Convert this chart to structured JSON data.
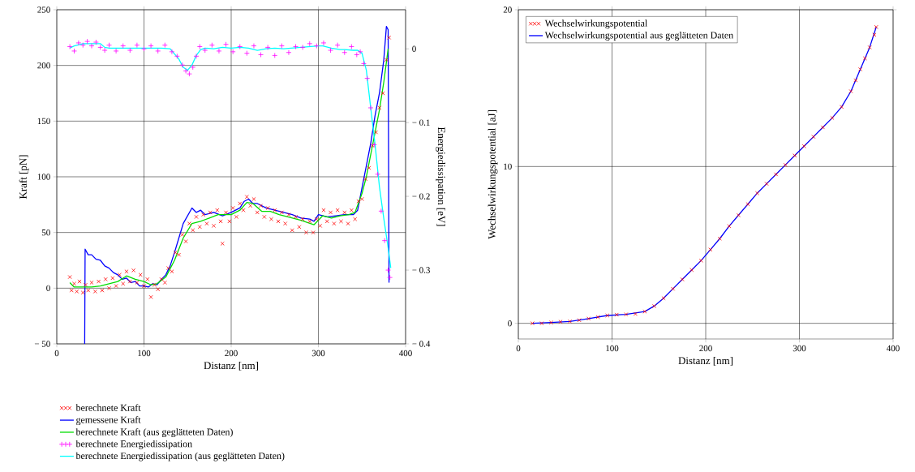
{
  "chart_data": [
    {
      "type": "line",
      "xlabel": "Distanz [nm]",
      "ylabel": "Kraft [pN]",
      "y2label": "Energiedissipation [eV]",
      "xlim": [
        0,
        400
      ],
      "ylim": [
        -50,
        250
      ],
      "y2lim": [
        -0.4,
        0.053
      ],
      "xticks": [
        0,
        100,
        200,
        300,
        400
      ],
      "yticks": [
        {
          "value": -50,
          "label": "− 50"
        },
        0,
        50,
        100,
        150,
        200,
        250
      ],
      "y2ticks": [
        0,
        {
          "value": -0.1,
          "label": "− 0.1"
        },
        {
          "value": -0.2,
          "label": "− 0.2"
        },
        {
          "value": -0.3,
          "label": "− 0.3"
        },
        {
          "value": -0.4,
          "label": "− 0.4"
        }
      ],
      "grid": true,
      "legend": "bottom",
      "series": [
        {
          "name": "berechnete Kraft",
          "type": "scatter",
          "marker": "cross",
          "color": "#ff0000",
          "x": [
            15,
            17,
            20,
            23,
            26,
            30,
            33,
            36,
            40,
            44,
            48,
            52,
            56,
            60,
            64,
            68,
            72,
            76,
            80,
            84,
            88,
            92,
            96,
            100,
            104,
            108,
            112,
            116,
            120,
            124,
            128,
            132,
            136,
            140,
            144,
            148,
            152,
            156,
            160,
            164,
            168,
            172,
            176,
            180,
            184,
            188,
            190,
            194,
            198,
            202,
            206,
            210,
            214,
            218,
            222,
            226,
            230,
            234,
            238,
            242,
            246,
            250,
            254,
            258,
            262,
            266,
            270,
            274,
            278,
            282,
            286,
            290,
            294,
            298,
            302,
            306,
            310,
            314,
            318,
            322,
            326,
            330,
            334,
            338,
            342,
            346,
            350,
            354,
            358,
            362,
            366,
            370,
            374,
            378,
            381
          ],
          "values": [
            10,
            -2,
            4,
            -3,
            6,
            -4,
            3,
            -2,
            5,
            -3,
            6,
            -2,
            8,
            0,
            9,
            2,
            12,
            4,
            15,
            6,
            16,
            5,
            12,
            2,
            8,
            -8,
            3,
            -1,
            8,
            5,
            18,
            15,
            32,
            30,
            48,
            42,
            58,
            52,
            64,
            55,
            66,
            58,
            68,
            56,
            70,
            60,
            40,
            68,
            60,
            72,
            64,
            76,
            70,
            82,
            74,
            80,
            68,
            74,
            64,
            72,
            62,
            70,
            60,
            68,
            58,
            66,
            52,
            64,
            55,
            62,
            50,
            60,
            50,
            62,
            56,
            70,
            60,
            68,
            58,
            70,
            60,
            68,
            58,
            70,
            62,
            78,
            80,
            98,
            108,
            128,
            140,
            162,
            175,
            205,
            225
          ]
        },
        {
          "name": "gemessene Kraft",
          "type": "line",
          "marker": "none",
          "color": "#0000ff",
          "x": [
            32,
            32.5,
            36,
            40,
            45,
            50,
            55,
            60,
            65,
            70,
            75,
            80,
            85,
            90,
            95,
            100,
            105,
            110,
            115,
            120,
            125,
            130,
            135,
            140,
            145,
            150,
            155,
            160,
            165,
            170,
            180,
            190,
            200,
            210,
            215,
            220,
            225,
            230,
            240,
            250,
            260,
            270,
            280,
            290,
            295,
            300,
            310,
            320,
            330,
            340,
            345,
            350,
            355,
            360,
            365,
            370,
            375,
            378,
            380,
            381
          ],
          "values": [
            -50,
            35,
            30,
            30,
            26,
            25,
            20,
            18,
            14,
            12,
            8,
            9,
            5,
            6,
            2,
            2,
            1,
            4,
            3,
            8,
            12,
            20,
            32,
            45,
            58,
            65,
            72,
            68,
            70,
            66,
            68,
            65,
            68,
            72,
            78,
            80,
            76,
            76,
            72,
            70,
            68,
            66,
            63,
            62,
            60,
            66,
            64,
            65,
            66,
            66,
            70,
            90,
            110,
            130,
            155,
            175,
            205,
            235,
            232,
            5
          ]
        },
        {
          "name": "berechnete Kraft (aus geglätteten Daten)",
          "type": "line",
          "marker": "none",
          "color": "#00dd00",
          "x": [
            15,
            20,
            30,
            40,
            50,
            60,
            70,
            80,
            90,
            100,
            108,
            115,
            125,
            135,
            145,
            155,
            165,
            175,
            185,
            200,
            210,
            218,
            225,
            235,
            245,
            255,
            265,
            280,
            295,
            305,
            315,
            325,
            335,
            342,
            350,
            355,
            360,
            365,
            370,
            375,
            380
          ],
          "values": [
            5,
            1,
            1,
            1,
            2,
            4,
            6,
            11,
            8,
            6,
            3,
            4,
            10,
            25,
            45,
            58,
            60,
            63,
            66,
            66,
            70,
            77,
            76,
            69,
            69,
            66,
            64,
            61,
            57,
            65,
            63,
            65,
            66,
            68,
            85,
            100,
            120,
            140,
            160,
            185,
            215
          ]
        },
        {
          "name": "berechnete Energiedissipation",
          "type": "scatter",
          "marker": "plus",
          "color": "#ff00ff",
          "axis": "y2",
          "x": [
            15,
            20,
            25,
            30,
            35,
            40,
            45,
            50,
            55,
            60,
            68,
            76,
            84,
            92,
            100,
            108,
            116,
            124,
            132,
            138,
            144,
            148,
            152,
            156,
            160,
            164,
            170,
            178,
            186,
            194,
            202,
            210,
            218,
            226,
            234,
            242,
            250,
            258,
            266,
            274,
            282,
            290,
            298,
            306,
            314,
            322,
            330,
            338,
            344,
            348,
            352,
            356,
            360,
            364,
            368,
            372,
            376,
            380,
            382
          ],
          "values": [
            0.003,
            -0.003,
            0.008,
            0.005,
            0.01,
            0.004,
            0.009,
            0.002,
            -0.002,
            0.005,
            -0.003,
            0.004,
            -0.002,
            0.005,
            0,
            0.004,
            -0.003,
            0.005,
            -0.004,
            -0.01,
            -0.022,
            -0.03,
            -0.034,
            -0.025,
            -0.01,
            0.003,
            -0.002,
            0.005,
            -0.003,
            0.006,
            -0.004,
            0.003,
            -0.006,
            0.004,
            -0.008,
            0.002,
            -0.009,
            0.004,
            -0.005,
            0.003,
            0.002,
            0.007,
            0.004,
            0.008,
            -0.002,
            0.005,
            -0.005,
            0.003,
            -0.008,
            -0.004,
            -0.02,
            -0.04,
            -0.08,
            -0.13,
            -0.17,
            -0.22,
            -0.26,
            -0.3,
            -0.31
          ]
        },
        {
          "name": "berechnete Energiedissipation (aus geglätteten Daten)",
          "type": "line",
          "marker": "none",
          "color": "#00ffff",
          "axis": "y2",
          "x": [
            15,
            20,
            30,
            40,
            50,
            55,
            60,
            70,
            80,
            90,
            100,
            110,
            120,
            130,
            140,
            145,
            150,
            155,
            160,
            165,
            170,
            180,
            190,
            200,
            210,
            220,
            230,
            240,
            250,
            260,
            270,
            280,
            290,
            300,
            305,
            315,
            325,
            330,
            340,
            345,
            350,
            355,
            360,
            365,
            370,
            375,
            380,
            383
          ],
          "values": [
            0.001,
            0.004,
            0.007,
            0.007,
            0.007,
            0.002,
            0.001,
            0.001,
            0.001,
            0.001,
            0.001,
            0.001,
            0.001,
            0,
            -0.014,
            -0.025,
            -0.029,
            -0.022,
            -0.009,
            -0.001,
            0.001,
            0,
            0.002,
            0.001,
            0.002,
            0.001,
            -0.002,
            0,
            0.001,
            0,
            0.001,
            0.002,
            0.003,
            0.004,
            0.004,
            0.001,
            -0.001,
            -0.001,
            -0.002,
            -0.002,
            -0.006,
            -0.029,
            -0.08,
            -0.13,
            -0.187,
            -0.23,
            -0.27,
            -0.297
          ]
        }
      ]
    },
    {
      "type": "line",
      "xlabel": "Distanz [nm]",
      "ylabel": "Wechselwirkungspotential [aJ]",
      "xlim": [
        0,
        400
      ],
      "ylim": [
        -1,
        20
      ],
      "xticks": [
        0,
        100,
        200,
        300,
        400
      ],
      "yticks": [
        0,
        10,
        20
      ],
      "grid": true,
      "legend": "top left",
      "series": [
        {
          "name": "Wechselwirkungspotential",
          "type": "scatter",
          "marker": "cross",
          "color": "#ff0000",
          "x": [
            15,
            25,
            35,
            45,
            55,
            65,
            75,
            85,
            95,
            105,
            115,
            125,
            135,
            145,
            155,
            165,
            175,
            185,
            195,
            205,
            215,
            225,
            235,
            245,
            255,
            265,
            275,
            285,
            295,
            305,
            315,
            325,
            335,
            345,
            355,
            360,
            365,
            370,
            375,
            380,
            382
          ],
          "values": [
            0,
            0,
            0.05,
            0.1,
            0.12,
            0.2,
            0.3,
            0.4,
            0.5,
            0.55,
            0.57,
            0.6,
            0.75,
            1.1,
            1.6,
            2.2,
            2.8,
            3.4,
            4.0,
            4.7,
            5.4,
            6.2,
            6.9,
            7.6,
            8.3,
            8.9,
            9.5,
            10.1,
            10.7,
            11.3,
            11.9,
            12.5,
            13.1,
            13.8,
            14.8,
            15.5,
            16.2,
            16.9,
            17.6,
            18.4,
            18.9
          ]
        },
        {
          "name": "Wechselwirkungspotential aus geglätteten Daten",
          "type": "line",
          "marker": "none",
          "color": "#0000ff",
          "x": [
            15,
            35,
            55,
            75,
            95,
            115,
            135,
            145,
            155,
            165,
            175,
            185,
            195,
            205,
            215,
            225,
            235,
            245,
            255,
            265,
            275,
            285,
            295,
            305,
            315,
            325,
            335,
            345,
            355,
            365,
            375,
            382
          ],
          "values": [
            0,
            0.05,
            0.12,
            0.3,
            0.5,
            0.57,
            0.75,
            1.1,
            1.6,
            2.2,
            2.8,
            3.4,
            4.0,
            4.7,
            5.4,
            6.2,
            6.9,
            7.6,
            8.3,
            8.9,
            9.5,
            10.1,
            10.7,
            11.3,
            11.9,
            12.5,
            13.1,
            13.8,
            14.8,
            16.2,
            17.6,
            18.9
          ]
        }
      ]
    }
  ]
}
